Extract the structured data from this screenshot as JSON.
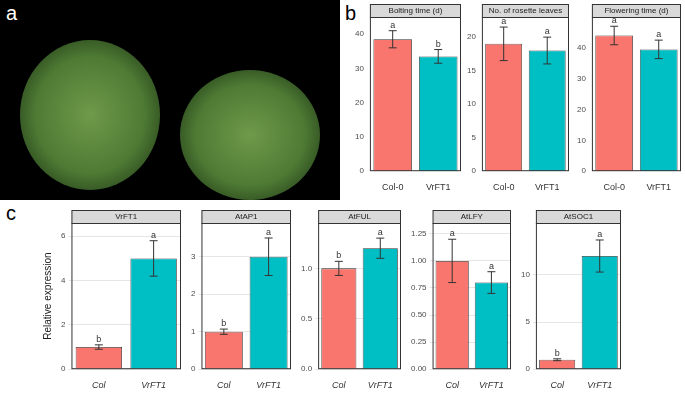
{
  "panel_labels": [
    "a",
    "b",
    "c"
  ],
  "chart_data": [
    {
      "type": "bar",
      "panel": "b",
      "title": "Bolting time (d)",
      "categories": [
        "Col-0",
        "VrFT1"
      ],
      "values": [
        38.5,
        33.5
      ],
      "errors": [
        2.5,
        2
      ],
      "letters": [
        "a",
        "b"
      ],
      "colors": [
        "#F8766D",
        "#00BFC4"
      ],
      "ylim": [
        0,
        45
      ],
      "yticks": [
        0,
        10,
        20,
        30,
        40
      ],
      "grid": false
    },
    {
      "type": "bar",
      "panel": "b",
      "title": "No. of rosette leaves",
      "categories": [
        "Col-0",
        "VrFT1"
      ],
      "values": [
        19,
        18
      ],
      "errors": [
        2.5,
        2
      ],
      "letters": [
        "a",
        "a"
      ],
      "colors": [
        "#F8766D",
        "#00BFC4"
      ],
      "ylim": [
        0,
        23
      ],
      "yticks": [
        0,
        5,
        10,
        15,
        20
      ],
      "grid": false
    },
    {
      "type": "bar",
      "panel": "b",
      "title": "Flowering time (d)",
      "categories": [
        "Col-0",
        "VrFT1"
      ],
      "values": [
        44,
        39.5
      ],
      "errors": [
        3,
        3
      ],
      "letters": [
        "a",
        "a"
      ],
      "colors": [
        "#F8766D",
        "#00BFC4"
      ],
      "ylim": [
        0,
        50
      ],
      "yticks": [
        0,
        10,
        20,
        30,
        40
      ],
      "grid": false
    },
    {
      "type": "bar",
      "panel": "c",
      "title": "VrFT1",
      "y_label": "Relative expression",
      "categories": [
        "Col",
        "VrFT1"
      ],
      "values": [
        1,
        5
      ],
      "errors": [
        0.1,
        0.8
      ],
      "letters": [
        "b",
        "a"
      ],
      "colors": [
        "#F8766D",
        "#00BFC4"
      ],
      "ylim": [
        0,
        6.6
      ],
      "yticks": [
        0,
        2,
        4,
        6
      ],
      "grid": true
    },
    {
      "type": "bar",
      "panel": "c",
      "title": "AtAP1",
      "categories": [
        "Col",
        "VrFT1"
      ],
      "values": [
        1,
        3
      ],
      "errors": [
        0.07,
        0.5
      ],
      "letters": [
        "b",
        "a"
      ],
      "colors": [
        "#F8766D",
        "#00BFC4"
      ],
      "ylim": [
        0,
        3.9
      ],
      "yticks": [
        0,
        1,
        2,
        3
      ],
      "grid": true
    },
    {
      "type": "bar",
      "panel": "c",
      "title": "AtFUL",
      "categories": [
        "Col",
        "VrFT1"
      ],
      "values": [
        1,
        1.2
      ],
      "errors": [
        0.07,
        0.1
      ],
      "letters": [
        "b",
        "a"
      ],
      "colors": [
        "#F8766D",
        "#00BFC4"
      ],
      "ylim": [
        0,
        1.45
      ],
      "yticks": [
        {
          "value": 0,
          "label": "0.0"
        },
        {
          "value": 0.5,
          "label": "0.5"
        },
        {
          "value": 1,
          "label": "1.0"
        }
      ],
      "grid": true
    },
    {
      "type": "bar",
      "panel": "c",
      "title": "AtLFY",
      "categories": [
        "Col",
        "VrFT1"
      ],
      "values": [
        1,
        0.8
      ],
      "errors": [
        0.2,
        0.1
      ],
      "letters": [
        "a",
        "a"
      ],
      "colors": [
        "#F8766D",
        "#00BFC4"
      ],
      "ylim": [
        0,
        1.35
      ],
      "yticks": [
        {
          "value": 0,
          "label": "0.00"
        },
        {
          "value": 0.25,
          "label": "0.25"
        },
        {
          "value": 0.5,
          "label": "0.50"
        },
        {
          "value": 0.75,
          "label": "0.75"
        },
        {
          "value": 1,
          "label": "1.00"
        },
        {
          "value": 1.25,
          "label": "1.25"
        }
      ],
      "grid": true
    },
    {
      "type": "bar",
      "panel": "c",
      "title": "AtSOC1",
      "categories": [
        "Col",
        "VrFT1"
      ],
      "values": [
        1,
        12
      ],
      "errors": [
        0.1,
        1.7
      ],
      "letters": [
        "b",
        "a"
      ],
      "colors": [
        "#F8766D",
        "#00BFC4"
      ],
      "ylim": [
        0,
        15.5
      ],
      "yticks": [
        0,
        5,
        10
      ],
      "grid": true
    }
  ]
}
